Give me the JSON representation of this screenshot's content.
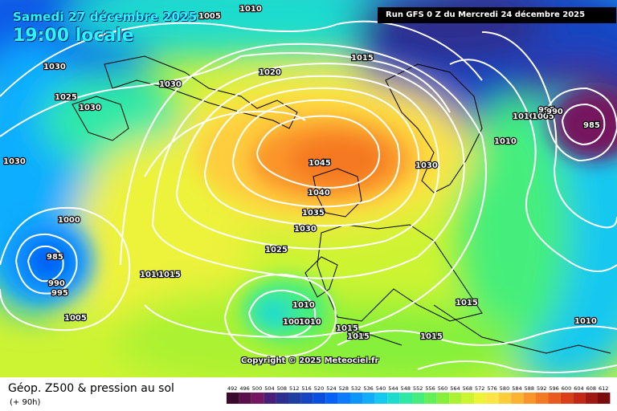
{
  "header": {
    "date": "Samedi 27 décembre 2025",
    "time": "19:00 locale",
    "run": "Run GFS 0 Z du Mercredi 24 décembre 2025"
  },
  "copyright": "Copyright © 2025 Meteociel.fr",
  "legend": {
    "title": "Géop. Z500 & pression au sol",
    "subtitle": "(+ 90h)",
    "ticks": [
      "492",
      "496",
      "500",
      "504",
      "508",
      "512",
      "516",
      "520",
      "524",
      "528",
      "532",
      "536",
      "540",
      "544",
      "548",
      "552",
      "556",
      "560",
      "564",
      "568",
      "572",
      "576",
      "580",
      "584",
      "588",
      "592",
      "596",
      "600",
      "604",
      "608",
      "612"
    ],
    "colors": [
      "#3b0a2d",
      "#5a1048",
      "#75175f",
      "#4a1f78",
      "#2d2f8e",
      "#1f3fa0",
      "#1545c2",
      "#0a4fdd",
      "#0661f5",
      "#0b7cff",
      "#0a95ff",
      "#10adff",
      "#14c8f0",
      "#1edccd",
      "#2fe8a8",
      "#45ee7c",
      "#63ef55",
      "#85f03b",
      "#aaf232",
      "#cdf432",
      "#edf23a",
      "#fde545",
      "#fecd3c",
      "#feb232",
      "#fb952a",
      "#f57824",
      "#ea5a1e",
      "#d9401a",
      "#c22a16",
      "#a11713",
      "#7d0a0e"
    ]
  },
  "isobars": [
    {
      "text": "1005"
    },
    {
      "text": "1010"
    },
    {
      "text": "1030"
    },
    {
      "text": "1025"
    },
    {
      "text": "1030"
    },
    {
      "text": "1030"
    },
    {
      "text": "1020"
    },
    {
      "text": "1015"
    },
    {
      "text": "1030"
    },
    {
      "text": "1000"
    },
    {
      "text": "985"
    },
    {
      "text": "990"
    },
    {
      "text": "995"
    },
    {
      "text": "1005"
    },
    {
      "text": "1010"
    },
    {
      "text": "1015"
    },
    {
      "text": "1025"
    },
    {
      "text": "1030"
    },
    {
      "text": "1035"
    },
    {
      "text": "1040"
    },
    {
      "text": "1045"
    },
    {
      "text": "1030"
    },
    {
      "text": "1010"
    },
    {
      "text": "1005"
    },
    {
      "text": "1010"
    },
    {
      "text": "1015"
    },
    {
      "text": "1015"
    },
    {
      "text": "1015"
    },
    {
      "text": "1015"
    },
    {
      "text": "1010"
    },
    {
      "text": "1010"
    },
    {
      "text": "1005"
    },
    {
      "text": "995"
    },
    {
      "text": "990"
    },
    {
      "text": "985"
    },
    {
      "text": "1010"
    }
  ]
}
